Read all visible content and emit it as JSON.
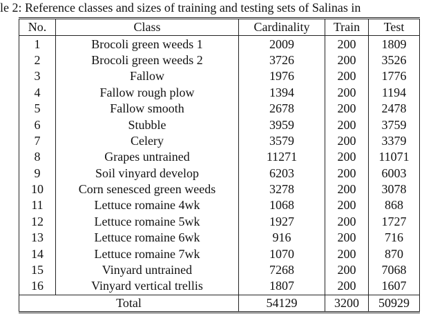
{
  "caption": "le 2: Reference classes and sizes of training and testing sets of Salinas in",
  "table": {
    "header": [
      "No.",
      "Class",
      "Cardinality",
      "Train",
      "Test"
    ],
    "rows": [
      [
        1,
        "Brocoli green weeds 1",
        2009,
        200,
        1809
      ],
      [
        2,
        "Brocoli green weeds 2",
        3726,
        200,
        3526
      ],
      [
        3,
        "Fallow",
        1976,
        200,
        1776
      ],
      [
        4,
        "Fallow rough plow",
        1394,
        200,
        1194
      ],
      [
        5,
        "Fallow smooth",
        2678,
        200,
        2478
      ],
      [
        6,
        "Stubble",
        3959,
        200,
        3759
      ],
      [
        7,
        "Celery",
        3579,
        200,
        3379
      ],
      [
        8,
        "Grapes untrained",
        11271,
        200,
        11071
      ],
      [
        9,
        "Soil vinyard develop",
        6203,
        200,
        6003
      ],
      [
        10,
        "Corn senesced green weeds",
        3278,
        200,
        3078
      ],
      [
        11,
        "Lettuce romaine 4wk",
        1068,
        200,
        868
      ],
      [
        12,
        "Lettuce romaine 5wk",
        1927,
        200,
        1727
      ],
      [
        13,
        "Lettuce romaine 6wk",
        916,
        200,
        716
      ],
      [
        14,
        "Lettuce romaine 7wk",
        1070,
        200,
        870
      ],
      [
        15,
        "Vinyard untrained",
        7268,
        200,
        7068
      ],
      [
        16,
        "Vinyard vertical trellis",
        1807,
        200,
        1607
      ]
    ],
    "total": [
      "Total",
      54129,
      3200,
      50929
    ]
  }
}
